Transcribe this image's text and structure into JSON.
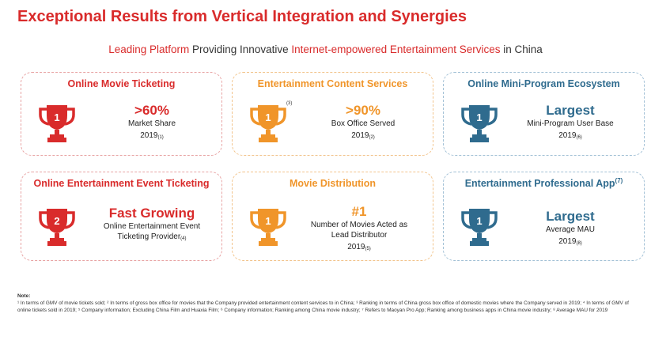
{
  "title": "Exceptional Results from Vertical Integration and Synergies",
  "subtitle": {
    "part1": "Leading Platform",
    "part2": " Providing Innovative ",
    "part3": "Internet-empowered Entertainment Services",
    "part4": " in China"
  },
  "cards": [
    {
      "title": "Online Movie Ticketing",
      "rank": "1",
      "big": ">60%",
      "desc": "Market Share",
      "year": "2019",
      "year_note": "(1)"
    },
    {
      "title": "Entertainment Content Services",
      "rank": "1",
      "rank_note": "(3)",
      "big": ">90%",
      "desc": "Box Office Served",
      "year": "2019",
      "year_note": "(2)"
    },
    {
      "title": "Online Mini-Program Ecosystem",
      "rank": "1",
      "big": "Largest",
      "desc": "Mini-Program User Base",
      "year": "2019",
      "year_note": "(6)"
    },
    {
      "title": "Online Entertainment Event Ticketing",
      "rank": "2",
      "big": "Fast Growing",
      "desc1": "Online Entertainment Event",
      "desc2": "Ticketing Provider",
      "desc_note": "(4)"
    },
    {
      "title": "Movie Distribution",
      "rank": "1",
      "big": "#1",
      "desc1": "Number of Movies Acted as",
      "desc2": "Lead Distributor",
      "year": "2019",
      "year_note": "(5)"
    },
    {
      "title": "Entertainment Professional App",
      "title_note": "(7)",
      "rank": "1",
      "big": "Largest",
      "desc": "Average MAU",
      "year": "2019",
      "year_note": "(8)"
    }
  ],
  "colors": {
    "red": "#d92b2b",
    "orange": "#f0952a",
    "blue": "#2f6b8e"
  },
  "note": {
    "label": "Note:",
    "text": "¹ In terms of GMV of movie tickets sold; ² In terms of gross box office for movies that the Company provided entertainment content services to in China; ³ Ranking in terms of China gross box office of domestic movies where the Company served in 2019; ⁴ In terms of GMV of online tickets sold in 2019; ⁵ Company information; Excluding China Film and Huaxia Film; ⁶ Company information; Ranking among China movie industry; ⁷ Refers to Maoyan Pro App; Ranking among business apps in China movie industry; ⁸ Average MAU for 2019"
  }
}
